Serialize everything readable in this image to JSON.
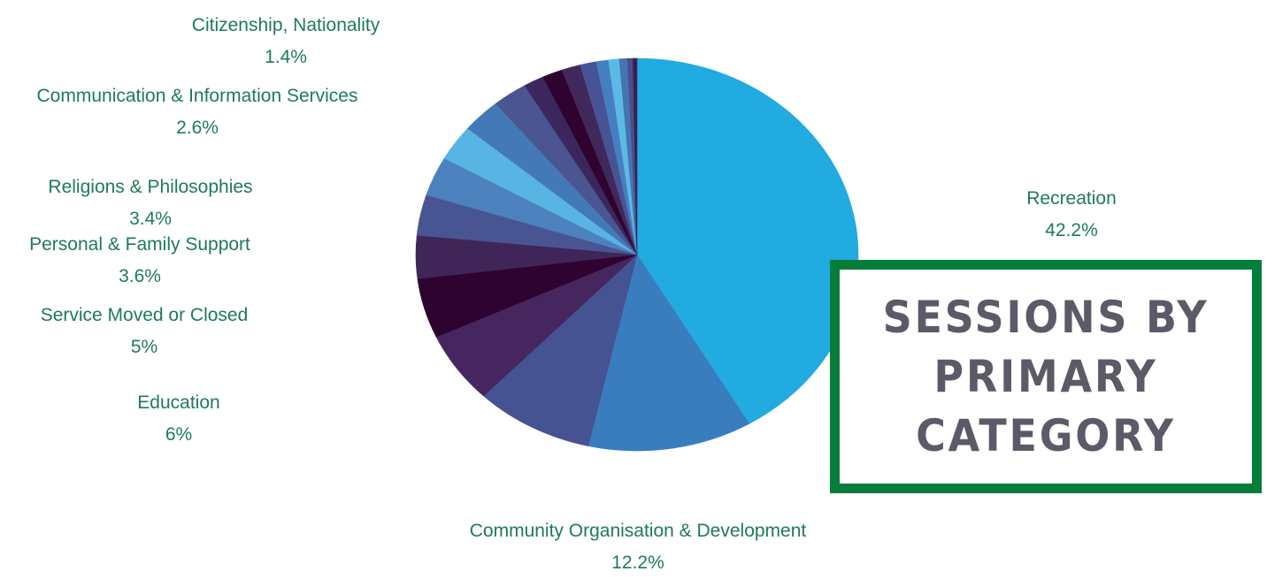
{
  "chart_data": {
    "type": "pie",
    "title": "Sessions by primary category",
    "slices": [
      {
        "label": "Recreation",
        "value": 42.2,
        "value_label": "42.2%",
        "color": "#21abe0"
      },
      {
        "label": "Community Organisation & Development",
        "value": 12.2,
        "value_label": "12.2%",
        "color": "#3a7dbf"
      },
      {
        "label": "",
        "value": 8.8,
        "value_label": "",
        "color": "#455393"
      },
      {
        "label": "Education",
        "value": 6,
        "value_label": "6%",
        "color": "#45265e"
      },
      {
        "label": "Service Moved or Closed",
        "value": 5,
        "value_label": "5%",
        "color": "#2f0330"
      },
      {
        "label": "Personal & Family Support",
        "value": 3.6,
        "value_label": "3.6%",
        "color": "#3f2558"
      },
      {
        "label": "Religions & Philosophies",
        "value": 3.4,
        "value_label": "3.4%",
        "color": "#495492"
      },
      {
        "label": "",
        "value": 3.3,
        "value_label": "",
        "color": "#4b82bd"
      },
      {
        "label": "",
        "value": 3,
        "value_label": "",
        "color": "#58b4e3"
      },
      {
        "label": "",
        "value": 2.9,
        "value_label": "",
        "color": "#4479b8"
      },
      {
        "label": "Communication & Information Services",
        "value": 2.6,
        "value_label": "2.6%",
        "color": "#4a5592"
      },
      {
        "label": "",
        "value": 1.5,
        "value_label": "",
        "color": "#3b265e"
      },
      {
        "label": "",
        "value": 1.5,
        "value_label": "",
        "color": "#2e0330"
      },
      {
        "label": "Citizenship, Nationality",
        "value": 1.4,
        "value_label": "1.4%",
        "color": "#41285b"
      },
      {
        "label": "",
        "value": 1.2,
        "value_label": "",
        "color": "#485395"
      },
      {
        "label": "",
        "value": 0.9,
        "value_label": "",
        "color": "#467fc0"
      },
      {
        "label": "",
        "value": 0.8,
        "value_label": "",
        "color": "#5cb9e6"
      },
      {
        "label": "",
        "value": 0.6,
        "value_label": "",
        "color": "#4575b0"
      },
      {
        "label": "",
        "value": 0.4,
        "value_label": "",
        "color": "#4a4d8e"
      },
      {
        "label": "",
        "value": 0.3,
        "value_label": "",
        "color": "#3a2050"
      }
    ],
    "legend": "none"
  }
}
